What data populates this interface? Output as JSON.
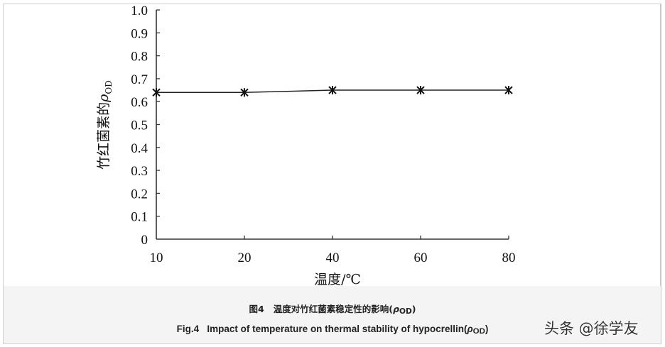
{
  "chart_data": {
    "type": "line",
    "title": "",
    "xlabel": "温度/℃",
    "ylabel": "竹红菌素的ρOD",
    "ylabel_parts": {
      "main": "竹红菌素的",
      "symbol": "ρ",
      "subscript": "OD"
    },
    "categories": [
      "10",
      "20",
      "40",
      "60",
      "80"
    ],
    "series": [
      {
        "name": "ρOD",
        "marker": "asterisk",
        "values": [
          0.64,
          0.64,
          0.65,
          0.65,
          0.65
        ]
      }
    ],
    "y_ticks": [
      "0",
      "0.1",
      "0.2",
      "0.3",
      "0.4",
      "0.5",
      "0.6",
      "0.7",
      "0.8",
      "0.9",
      "1.0"
    ],
    "x_ticks": [
      "10",
      "20",
      "40",
      "60",
      "80"
    ],
    "ylim": [
      0,
      1.0
    ],
    "grid": false,
    "legend": null
  },
  "caption": {
    "cn_prefix": "图4",
    "cn_text": "温度对竹红菌素稳定性的影响(",
    "en_prefix": "Fig.4",
    "en_text": "Impact of temperature on thermal stability of hypocrellin(",
    "rho": "ρ",
    "subscript": "OD",
    "close": ")"
  },
  "watermark": "头条 @徐学友",
  "colors": {
    "line": "#222222",
    "axis": "#333333",
    "caption_bg": "#f4f4f4",
    "frame": "#cfcfcf"
  }
}
